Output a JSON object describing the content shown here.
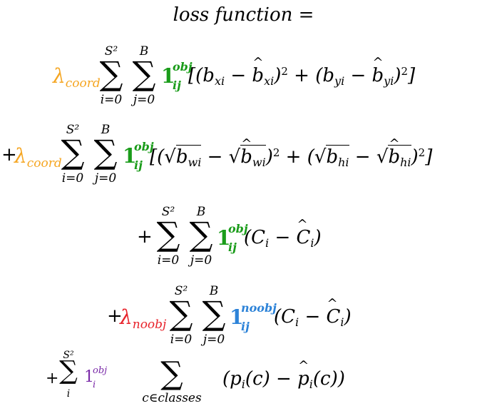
{
  "title": "loss function =",
  "colors": {
    "lambda": "#f5a623",
    "indicator": "#1a9c1a",
    "noobj_lambda": "#e8232b",
    "noobj_indicator": "#2d83d8",
    "class_indicator": "#7a2aa8"
  },
  "terms": [
    {
      "prefix": "",
      "lambda": "λ",
      "lambda_sub": "coord",
      "sum1_top": "S²",
      "sum1_bot": "i=0",
      "sum2_top": "B",
      "sum2_bot": "j=0",
      "ind": "1",
      "ind_sup": "obj",
      "ind_sub": "ij",
      "expr": "[(b_xi − b̂_xi)² + (b_yi − b̂_yi)²]"
    },
    {
      "prefix": "+",
      "lambda": "λ",
      "lambda_sub": "coord",
      "sum1_top": "S²",
      "sum1_bot": "i=0",
      "sum2_top": "B",
      "sum2_bot": "j=0",
      "ind": "1",
      "ind_sup": "obj",
      "ind_sub": "ij",
      "expr": "[(√b_wi − √b̂_wi)² + (√b_hi − √b̂_hi)²]"
    },
    {
      "prefix": "+",
      "sum1_top": "S²",
      "sum1_bot": "i=0",
      "sum2_top": "B",
      "sum2_bot": "j=0",
      "ind": "1",
      "ind_sup": "obj",
      "ind_sub": "ij",
      "expr": "(C_i − Ĉ_i)"
    },
    {
      "prefix": "+",
      "lambda": "λ",
      "lambda_sub": "noobj",
      "sum1_top": "S²",
      "sum1_bot": "i=0",
      "sum2_top": "B",
      "sum2_bot": "j=0",
      "ind": "1",
      "ind_sup": "noobj",
      "ind_sub": "ij",
      "expr": "(C_i − Ĉ_i)"
    },
    {
      "prefix": "+",
      "sum1_top": "S²",
      "sum1_bot": "i",
      "ind": "1",
      "ind_sup": "obj",
      "ind_sub": "i",
      "sum2_bot": "c∈classes",
      "expr": "(p_i(c) − p̂_i(c))"
    }
  ]
}
